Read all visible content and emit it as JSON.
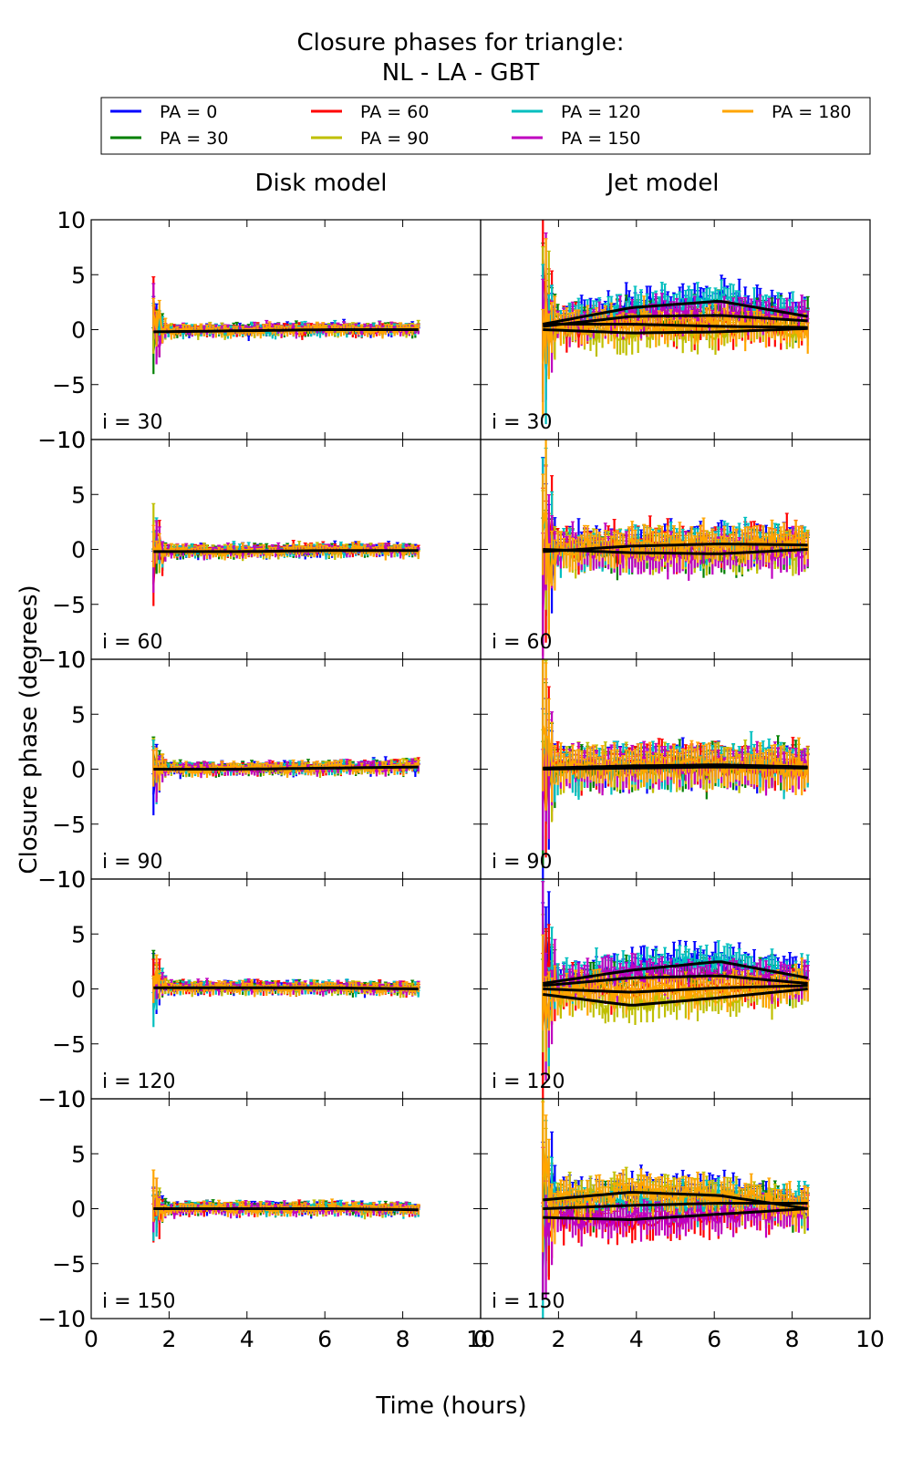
{
  "title_lines": [
    "Closure phases for triangle:",
    "NL - LA - GBT"
  ],
  "legend": [
    {
      "label": "PA = 0",
      "color": "#0000ff"
    },
    {
      "label": "PA = 30",
      "color": "#008000"
    },
    {
      "label": "PA = 60",
      "color": "#ff0000"
    },
    {
      "label": "PA = 90",
      "color": "#bfbf00"
    },
    {
      "label": "PA = 120",
      "color": "#00bfbf"
    },
    {
      "label": "PA = 150",
      "color": "#bf00bf"
    },
    {
      "label": "PA = 180",
      "color": "#ffa500"
    }
  ],
  "column_titles": [
    "Disk model",
    "Jet model"
  ],
  "ylabel": "Closure phase (degrees)",
  "xlabel": "Time (hours)",
  "chart_data": {
    "type": "line",
    "title": "Closure phases for triangle: NL - LA - GBT",
    "xlabel": "Time (hours)",
    "ylabel": "Closure phase (degrees)",
    "xlim": [
      0,
      10
    ],
    "ylim": [
      -10,
      10
    ],
    "xticks": [
      0,
      2,
      4,
      6,
      8,
      10
    ],
    "yticks": [
      -10,
      -5,
      0,
      5,
      10
    ],
    "time_range": [
      1.6,
      8.4
    ],
    "columns": [
      "Disk model",
      "Jet model"
    ],
    "rows": [
      "i = 30",
      "i = 60",
      "i = 90",
      "i = 120",
      "i = 150"
    ],
    "series_names": [
      "PA = 0",
      "PA = 30",
      "PA = 60",
      "PA = 90",
      "PA = 120",
      "PA = 150",
      "PA = 180"
    ],
    "panels": [
      {
        "column": "Disk model",
        "label": "i = 30",
        "model_curves": [
          [
            -0.2,
            -0.1,
            0.0,
            0.0
          ]
        ],
        "spread": 0.4,
        "err": 0.4
      },
      {
        "column": "Jet model",
        "label": "i = 30",
        "model_curves": [
          [
            0.5,
            2.0,
            2.6,
            1.2
          ],
          [
            0.3,
            1.2,
            1.3,
            0.8
          ],
          [
            0.5,
            0.5,
            0.3,
            0.2
          ],
          [
            0.0,
            -0.3,
            -0.2,
            0.1
          ]
        ],
        "spread": 1.0,
        "err": 1.2
      },
      {
        "column": "Disk model",
        "label": "i = 60",
        "model_curves": [
          [
            -0.2,
            -0.2,
            -0.1,
            -0.1
          ]
        ],
        "spread": 0.4,
        "err": 0.4
      },
      {
        "column": "Jet model",
        "label": "i = 60",
        "model_curves": [
          [
            -0.2,
            0.3,
            0.5,
            0.4
          ],
          [
            0.0,
            -0.3,
            -0.4,
            0.0
          ]
        ],
        "spread": 1.0,
        "err": 1.4
      },
      {
        "column": "Disk model",
        "label": "i = 90",
        "model_curves": [
          [
            0.0,
            0.0,
            0.1,
            0.2
          ]
        ],
        "spread": 0.4,
        "err": 0.4
      },
      {
        "column": "Jet model",
        "label": "i = 90",
        "model_curves": [
          [
            0.1,
            0.3,
            0.4,
            0.2
          ],
          [
            0.0,
            0.1,
            0.2,
            0.1
          ]
        ],
        "spread": 1.0,
        "err": 1.5
      },
      {
        "column": "Disk model",
        "label": "i = 120",
        "model_curves": [
          [
            0.1,
            0.1,
            0.1,
            0.0
          ]
        ],
        "spread": 0.4,
        "err": 0.4
      },
      {
        "column": "Jet model",
        "label": "i = 120",
        "model_curves": [
          [
            0.5,
            1.7,
            2.5,
            1.0
          ],
          [
            0.3,
            1.0,
            1.2,
            0.5
          ],
          [
            0.0,
            -0.3,
            0.1,
            0.3
          ],
          [
            -0.5,
            -1.5,
            -0.8,
            0.0
          ]
        ],
        "spread": 1.0,
        "err": 1.3
      },
      {
        "column": "Disk model",
        "label": "i = 150",
        "model_curves": [
          [
            0.0,
            0.0,
            0.0,
            -0.1
          ]
        ],
        "spread": 0.4,
        "err": 0.4
      },
      {
        "column": "Jet model",
        "label": "i = 150",
        "model_curves": [
          [
            0.8,
            1.5,
            1.2,
            0.0
          ],
          [
            0.0,
            0.3,
            0.5,
            0.5
          ],
          [
            -0.8,
            -1.0,
            -0.5,
            0.0
          ]
        ],
        "spread": 1.0,
        "err": 1.3
      }
    ]
  }
}
